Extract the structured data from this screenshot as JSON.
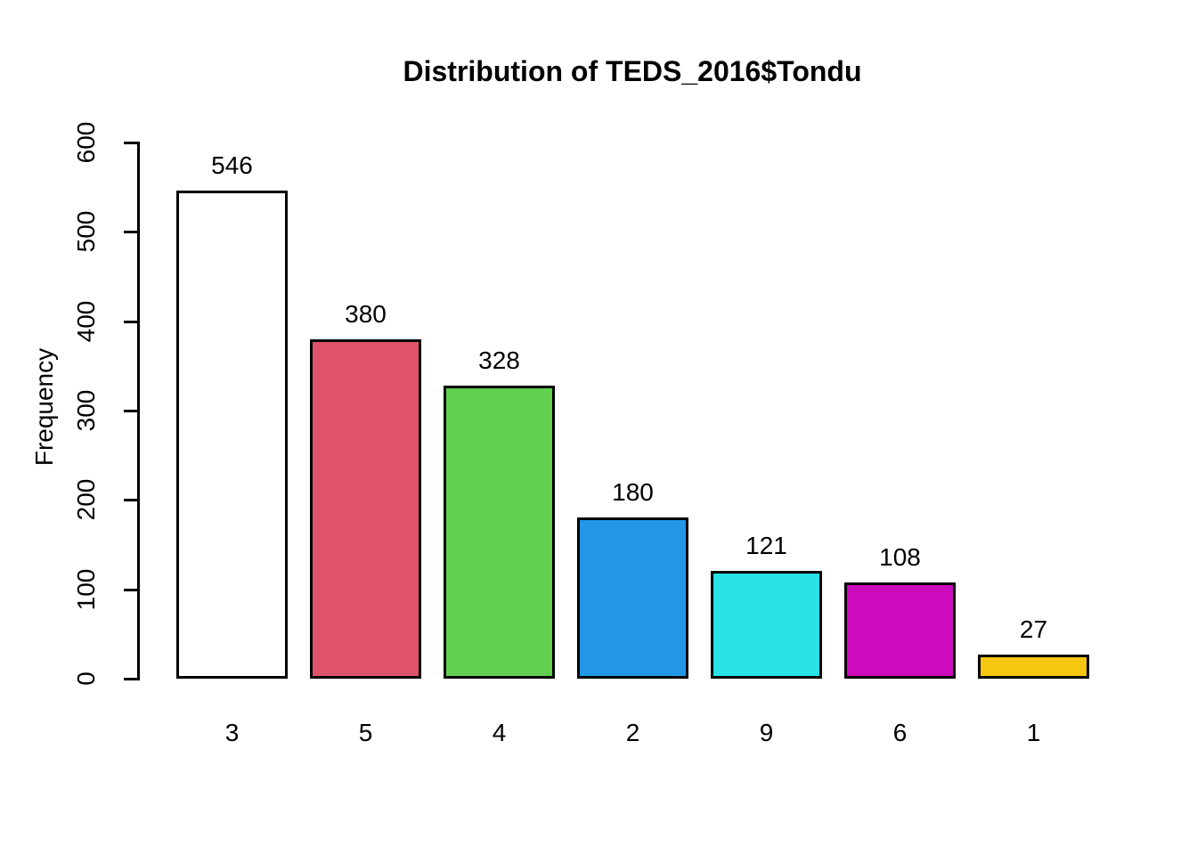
{
  "chart_data": {
    "type": "bar",
    "title": "Distribution of TEDS_2016$Tondu",
    "xlabel": "",
    "ylabel": "Frequency",
    "categories": [
      "3",
      "5",
      "4",
      "2",
      "9",
      "6",
      "1"
    ],
    "values": [
      546,
      380,
      328,
      180,
      121,
      108,
      27
    ],
    "value_labels": [
      "546",
      "380",
      "328",
      "180",
      "121",
      "108",
      "27"
    ],
    "bar_colors": [
      "#FFFFFF",
      "#DF536B",
      "#61D04F",
      "#2297E6",
      "#28E2E5",
      "#CD0BBC",
      "#F5C710"
    ],
    "bar_border_color": "#000000",
    "ylim": [
      0,
      600
    ],
    "yticks": [
      0,
      100,
      200,
      300,
      400,
      500,
      600
    ],
    "grid": false,
    "legend": null,
    "background": "#FFFFFF",
    "text_color": "#000000"
  }
}
